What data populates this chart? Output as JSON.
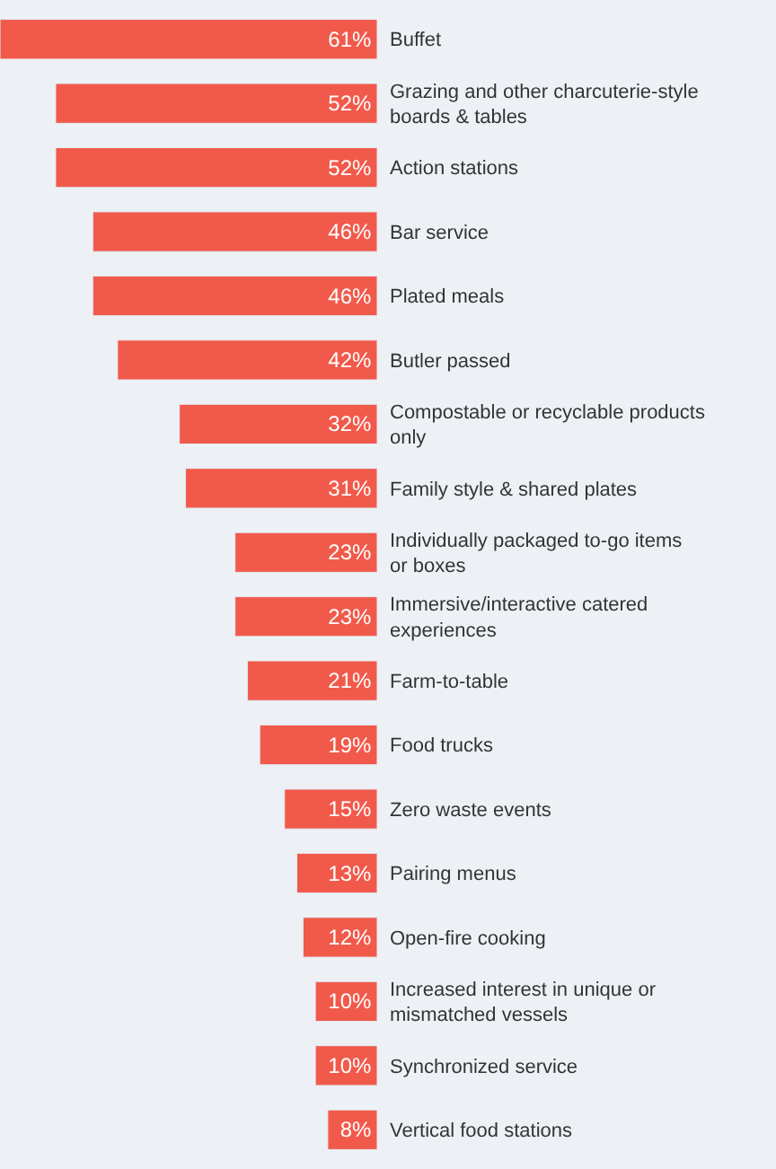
{
  "chart_data": {
    "type": "bar",
    "orientation": "horizontal",
    "categories": [
      "Buffet",
      "Grazing and other charcuterie-style boards & tables",
      "Action stations",
      "Bar service",
      "Plated meals",
      "Butler passed",
      "Compostable or recyclable products only",
      "Family style & shared plates",
      "Individually packaged to-go items or boxes",
      "Immersive/interactive catered experiences",
      "Farm-to-table",
      "Food trucks",
      "Zero waste events",
      "Pairing menus",
      "Open-fire cooking",
      "Increased interest in unique or mismatched vessels",
      "Synchronized service",
      "Vertical food stations"
    ],
    "values": [
      61,
      52,
      52,
      46,
      46,
      42,
      32,
      31,
      23,
      23,
      21,
      19,
      15,
      13,
      12,
      10,
      10,
      8
    ],
    "value_labels": [
      "61%",
      "52%",
      "52%",
      "46%",
      "46%",
      "42%",
      "32%",
      "31%",
      "23%",
      "23%",
      "21%",
      "19%",
      "15%",
      "13%",
      "12%",
      "10%",
      "10%",
      "8%"
    ],
    "color": "#f15a4b",
    "grid": false,
    "legend": false
  }
}
